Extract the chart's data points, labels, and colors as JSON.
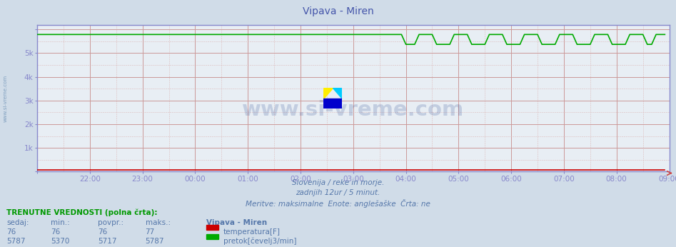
{
  "title": "Vipava - Miren",
  "title_color": "#4455aa",
  "title_fontsize": 10,
  "background_color": "#d0dce8",
  "plot_bg_color": "#e8eef4",
  "xlabel_lines": [
    "Slovenija / reke in morje.",
    "zadnjih 12ur / 5 minut.",
    "Meritve: maksimalne  Enote: anglešaške  Črta: ne"
  ],
  "xlabel_color": "#5577aa",
  "x_ticks_labels": [
    "22:00",
    "23:00",
    "00:00",
    "01:00",
    "02:00",
    "03:00",
    "04:00",
    "05:00",
    "06:00",
    "07:00",
    "08:00",
    "09:00"
  ],
  "y_ticks_labels": [
    "",
    "1k",
    "2k",
    "3k",
    "4k",
    "5k",
    ""
  ],
  "y_ticks_values": [
    0,
    1000,
    2000,
    3000,
    4000,
    5000,
    6000
  ],
  "ylim": [
    0,
    6200
  ],
  "n_points": 144,
  "grid_color_major": "#cc9999",
  "grid_color_minor": "#ddbbbb",
  "axis_color": "#8888cc",
  "temperature_line_color": "#cc0000",
  "flow_line_color": "#00aa00",
  "temperature_value": 76,
  "temperature_min": 76,
  "temperature_avg": 76,
  "temperature_max": 77,
  "flow_value": 5787,
  "flow_min": 5370,
  "flow_avg": 5717,
  "flow_max": 5787,
  "watermark_text": "www.si-vreme.com",
  "watermark_color": "#1a3a8a",
  "watermark_alpha": 0.18,
  "sidebar_text": "www.si-vreme.com",
  "sidebar_color": "#7799bb",
  "legend_title": "Vipava - Miren",
  "legend_items": [
    "temperatura[F]",
    "pretok[čevelj3/min]"
  ],
  "legend_colors": [
    "#cc0000",
    "#00aa00"
  ],
  "table_header": [
    "sedaj:",
    "min.:",
    "povpr.:",
    "maks.:"
  ],
  "table_label": "TRENUTNE VREDNOSTI (polna črta):"
}
